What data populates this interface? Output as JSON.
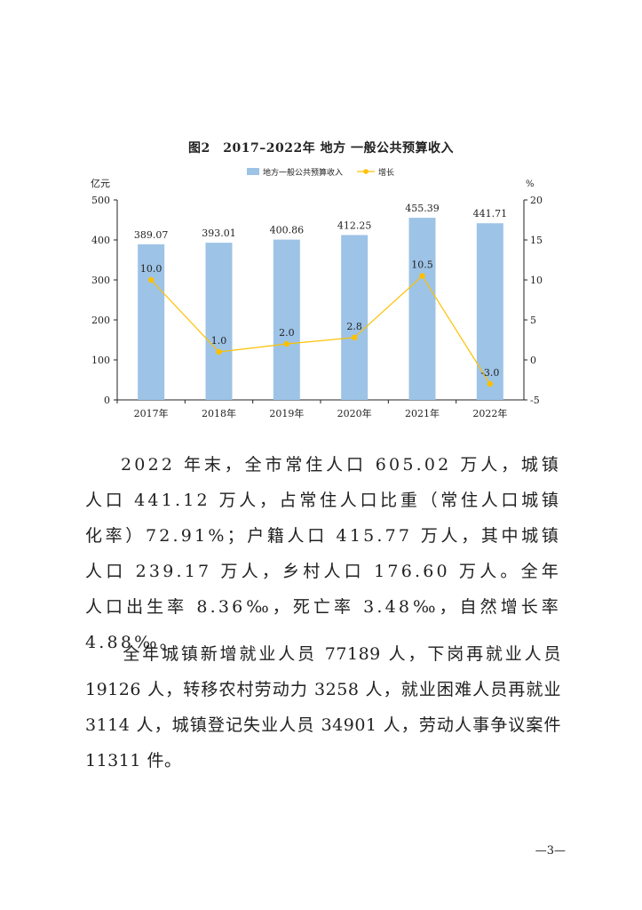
{
  "chart_title": "图2　2017–2022年 地方 一般公共预算收入",
  "chart_data": {
    "type": "bar",
    "categories": [
      "2017年",
      "2018年",
      "2019年",
      "2020年",
      "2021年",
      "2022年"
    ],
    "series": [
      {
        "name": "地方一般公共预算收入",
        "type": "bar",
        "axis": "left",
        "values": [
          389.07,
          393.01,
          400.86,
          412.25,
          455.39,
          441.71
        ],
        "labels": [
          "389.07",
          "393.01",
          "400.86",
          "412.25",
          "455.39",
          "441.71"
        ]
      },
      {
        "name": "增长",
        "type": "line",
        "axis": "right",
        "values": [
          10.0,
          1.0,
          2.0,
          2.8,
          10.5,
          -3.0
        ],
        "labels": [
          "10.0",
          "1.0",
          "2.0",
          "2.8",
          "10.5",
          "-3.0"
        ]
      }
    ],
    "left_unit": "亿元",
    "right_unit": "%",
    "left_ylim": [
      0,
      500
    ],
    "left_ticks": [
      "0",
      "100",
      "200",
      "300",
      "400",
      "500"
    ],
    "right_ylim": [
      -5,
      20
    ],
    "right_ticks": [
      "-5",
      "0",
      "5",
      "10",
      "15",
      "20"
    ],
    "legend_position": "top",
    "grid": false,
    "colors": {
      "bar": "#9dc3e6",
      "line": "#ffc000",
      "axis": "#222222"
    }
  },
  "paragraph1": "2022 年末，全市常住人口 605.02 万人，城镇人口 441.12 万人，占常住人口比重（常住人口城镇化率）72.91%；户籍人口 415.77 万人，其中城镇人口 239.17 万人，乡村人口 176.60 万人。全年人口出生率 8.36‰，死亡率 3.48‰，自然增长率 4.88‰。",
  "paragraph2": "全年城镇新增就业人员 77189 人，下岗再就业人员 19126 人，转移农村劳动力 3258 人，就业困难人员再就业 3114 人，城镇登记失业人员 34901 人，劳动人事争议案件 11311 件。",
  "page_number": "—3—"
}
